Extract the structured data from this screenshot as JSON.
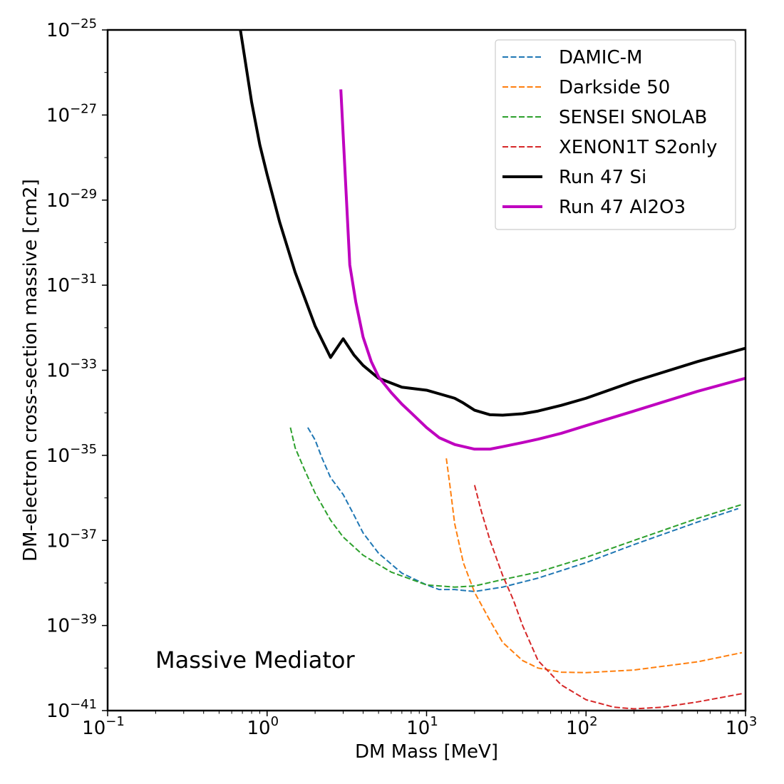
{
  "chart_data": {
    "type": "line",
    "title": "",
    "xlabel": "DM Mass [MeV]",
    "ylabel": "DM-electron cross-section massive [cm2]",
    "xscale": "log",
    "yscale": "log",
    "xlim": [
      0.1,
      1000
    ],
    "ylim": [
      1e-41,
      1e-25
    ],
    "grid": false,
    "legend_location": "top-right",
    "annotation": "Massive Mediator",
    "x_ticks": [
      {
        "base": "10",
        "exp": "−1",
        "value": 0.1
      },
      {
        "base": "10",
        "exp": "0",
        "value": 1
      },
      {
        "base": "10",
        "exp": "1",
        "value": 10
      },
      {
        "base": "10",
        "exp": "2",
        "value": 100
      },
      {
        "base": "10",
        "exp": "3",
        "value": 1000
      }
    ],
    "y_ticks": [
      {
        "base": "10",
        "exp": "−25",
        "value": 1e-25
      },
      {
        "base": "10",
        "exp": "−27",
        "value": 1e-27
      },
      {
        "base": "10",
        "exp": "−29",
        "value": 1e-29
      },
      {
        "base": "10",
        "exp": "−31",
        "value": 1e-31
      },
      {
        "base": "10",
        "exp": "−33",
        "value": 1e-33
      },
      {
        "base": "10",
        "exp": "−35",
        "value": 1e-35
      },
      {
        "base": "10",
        "exp": "−37",
        "value": 1e-37
      },
      {
        "base": "10",
        "exp": "−39",
        "value": 1e-39
      },
      {
        "base": "10",
        "exp": "−41",
        "value": 1e-41
      }
    ],
    "series": [
      {
        "name": "DAMIC-M",
        "color": "#1f77b4",
        "style": "dashed",
        "x": [
          1.8,
          2.0,
          2.2,
          2.5,
          3.0,
          3.5,
          4.0,
          5.0,
          7.0,
          10,
          12,
          15,
          20,
          30,
          50,
          100,
          200,
          500,
          900
        ],
        "y": [
          4.5e-35,
          2.3e-35,
          9e-36,
          3e-36,
          1.2e-36,
          4e-37,
          1.5e-37,
          5e-38,
          1.7e-38,
          9e-39,
          7e-39,
          7e-39,
          6.3e-39,
          8e-39,
          1.3e-38,
          3e-38,
          8e-38,
          2.7e-37,
          5.6e-37
        ]
      },
      {
        "name": "Darkside 50",
        "color": "#ff7f0e",
        "style": "dashed",
        "x": [
          13.3,
          14,
          15,
          17,
          20,
          25,
          30,
          40,
          50,
          70,
          100,
          200,
          500,
          950
        ],
        "y": [
          8.5e-36,
          2e-36,
          2.5e-37,
          3e-38,
          6e-39,
          1.3e-39,
          4e-40,
          1.5e-40,
          1e-40,
          8e-41,
          7.8e-41,
          9e-41,
          1.4e-40,
          2.3e-40
        ]
      },
      {
        "name": "SENSEI SNOLAB",
        "color": "#2ca02c",
        "style": "dashed",
        "x": [
          1.4,
          1.5,
          1.7,
          2.0,
          2.5,
          3.0,
          4.0,
          6.0,
          10,
          15,
          20,
          30,
          50,
          100,
          200,
          500,
          950
        ],
        "y": [
          4.5e-35,
          1.5e-35,
          5e-36,
          1.3e-36,
          3e-37,
          1.2e-37,
          4.5e-38,
          1.8e-38,
          9e-39,
          8e-39,
          8.5e-39,
          1.2e-38,
          1.8e-38,
          4e-38,
          1e-37,
          3.3e-37,
          7e-37
        ]
      },
      {
        "name": "XENON1T S2only",
        "color": "#d62728",
        "style": "dashed",
        "x": [
          20,
          22,
          25,
          30,
          35,
          40,
          50,
          70,
          100,
          150,
          200,
          300,
          500,
          950
        ],
        "y": [
          2e-36,
          5e-37,
          1e-37,
          1.5e-38,
          4e-39,
          1e-39,
          1.5e-40,
          4e-41,
          1.8e-41,
          1.2e-41,
          1.1e-41,
          1.2e-41,
          1.6e-41,
          2.5e-41
        ]
      },
      {
        "name": "Run 47 Si",
        "color": "#000000",
        "style": "solid",
        "x": [
          0.68,
          0.7,
          0.8,
          0.9,
          1.0,
          1.2,
          1.5,
          2.0,
          2.5,
          3.0,
          3.5,
          4.0,
          5.0,
          7.0,
          10,
          12,
          15,
          17,
          20,
          25,
          30,
          40,
          50,
          70,
          100,
          200,
          500,
          1000
        ],
        "y": [
          1e-25,
          5e-26,
          2e-27,
          2e-28,
          4e-29,
          3e-30,
          2e-31,
          1.1e-32,
          2e-33,
          5.5e-33,
          2.3e-33,
          1.3e-33,
          6.5e-34,
          4e-34,
          3.4e-34,
          2.8e-34,
          2.2e-34,
          1.7e-34,
          1.15e-34,
          9e-35,
          8.8e-35,
          9.5e-35,
          1.1e-34,
          1.5e-34,
          2.2e-34,
          5.5e-34,
          1.6e-33,
          3.3e-33
        ]
      },
      {
        "name": "Run 47 Al2O3",
        "color": "#bf00bf",
        "style": "solid",
        "x": [
          2.9,
          3.1,
          3.3,
          3.6,
          4.0,
          4.5,
          5.0,
          6.0,
          7.0,
          8.0,
          10,
          12,
          15,
          20,
          25,
          30,
          40,
          50,
          70,
          100,
          200,
          500,
          1000
        ],
        "y": [
          4e-27,
          3e-29,
          3e-31,
          4e-32,
          6e-33,
          1.6e-33,
          7e-34,
          3e-34,
          1.6e-34,
          1e-34,
          4.5e-35,
          2.6e-35,
          1.8e-35,
          1.4e-35,
          1.4e-35,
          1.6e-35,
          2e-35,
          2.4e-35,
          3.3e-35,
          5e-35,
          1.1e-34,
          3.2e-34,
          6.5e-34
        ]
      }
    ]
  }
}
